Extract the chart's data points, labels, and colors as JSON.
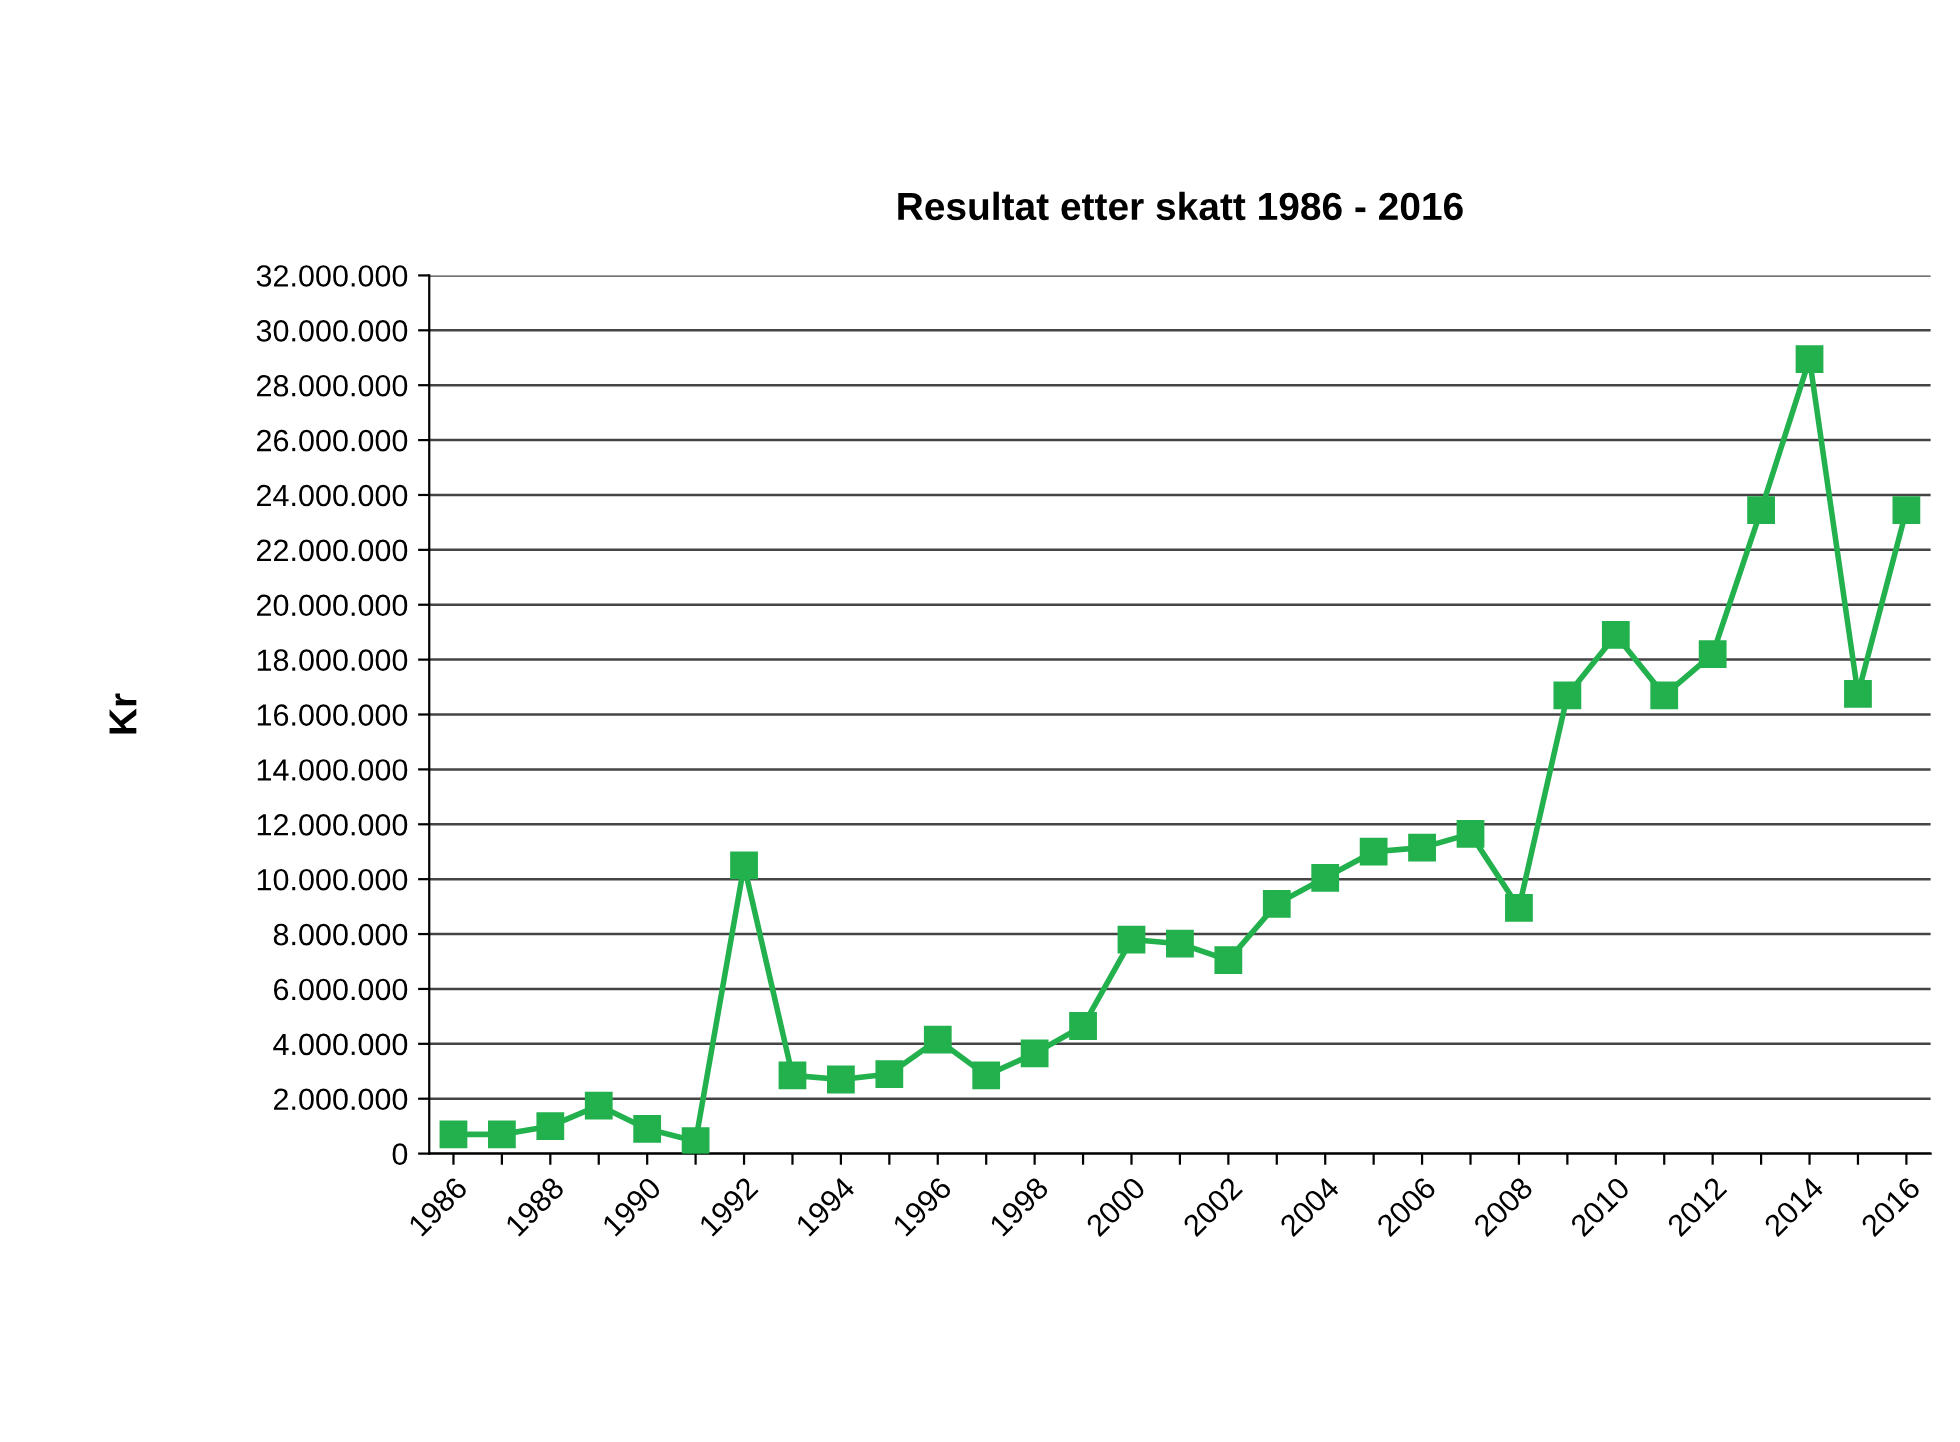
{
  "chart_data": {
    "type": "line",
    "title": "Resultat etter skatt 1986 - 2016",
    "ylabel": "Kr",
    "categories": [
      "1986",
      null,
      "1988",
      null,
      "1990",
      null,
      "1992",
      null,
      "1994",
      null,
      "1996",
      null,
      "1998",
      null,
      "2000",
      null,
      "2002",
      null,
      "2004",
      null,
      "2006",
      null,
      "2008",
      null,
      "2010",
      null,
      "2012",
      null,
      "2014",
      null,
      "2016"
    ],
    "series": [
      {
        "color": "#22b14c",
        "values": [
          700000,
          700000,
          1000000,
          1750000,
          900000,
          450000,
          10500000,
          2850000,
          2700000,
          2900000,
          4150000,
          2850000,
          3650000,
          4650000,
          7800000,
          7650000,
          7050000,
          9100000,
          10050000,
          11000000,
          11150000,
          11650000,
          8950000,
          16700000,
          18900000,
          16700000,
          18200000,
          23450000,
          28950000,
          16750000,
          23450000
        ]
      }
    ],
    "ylim": [
      0,
      32000000
    ],
    "yticks": [
      0,
      {
        "value": 2000000,
        "label": "2.000.000"
      },
      {
        "value": 4000000,
        "label": "4.000.000"
      },
      {
        "value": 6000000,
        "label": "6.000.000"
      },
      {
        "value": 8000000,
        "label": "8.000.000"
      },
      {
        "value": 10000000,
        "label": "10.000.000"
      },
      {
        "value": 12000000,
        "label": "12.000.000"
      },
      {
        "value": 14000000,
        "label": "14.000.000"
      },
      {
        "value": 16000000,
        "label": "16.000.000"
      },
      {
        "value": 18000000,
        "label": "18.000.000"
      },
      {
        "value": 20000000,
        "label": "20.000.000"
      },
      {
        "value": 22000000,
        "label": "22.000.000"
      },
      {
        "value": 24000000,
        "label": "24.000.000"
      },
      {
        "value": 26000000,
        "label": "26.000.000"
      },
      {
        "value": 28000000,
        "label": "28.000.000"
      },
      {
        "value": 30000000,
        "label": "30.000.000"
      },
      {
        "value": 32000000,
        "label": "32.000.000"
      }
    ],
    "grid": "y",
    "legend": false,
    "marker": "square",
    "line_style": "solid"
  }
}
